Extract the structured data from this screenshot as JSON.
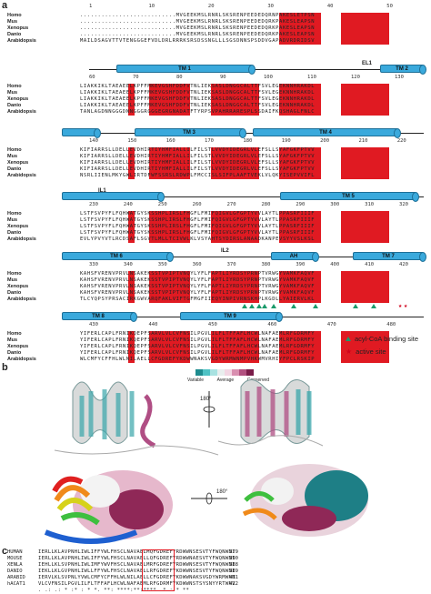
{
  "panels": {
    "a": "a",
    "b": "b",
    "c": "c"
  },
  "species": [
    "Homo",
    "Mus",
    "Xenopus",
    "Danio",
    "Arabidopsis"
  ],
  "block1": {
    "ruler": [
      "1",
      "10",
      "20",
      "30",
      "40",
      "50"
    ],
    "seqs": [
      "...........................MVGEEKMSLRNRLSKSRENPEEDEDQRNPAKESLETPSNGRIDIKQLIAKKIKLTAEAEELKPFFMKEVGSHFDDFVTNLIEKSASLDNGGCALTTFSVLEGEKNNHRAKDLRAPPEQGKIFIARRSLLDELLEVDHIRTIYHMFIALLILFILSTLVVDYIDEGRLVLEFSLLSYAFGKFPTVVWTWWIMFLSTFSVPYFLFQHWATGYSKSSHPLIRSLFHGFLFMIFQIGVLGFGPTYVVLAYTLPPASRFIIIFEQIRFVMKAHSFVRENVPRVLNSAKEKSSTVPIPTVNQYLYFLFAPTLIYRDSYPRNPTVRWGYVAMKFAQVFGCFFYVYYIFERLCAPLFRNIKQEPFSARVLVLCVFNSILPGVLILFLTFFAFLHCWLNAFAEMLRFGDRMFYKDWWNSTSYSNYYRTWNVVVHDWLYYYAYKDFLWFFSKRFKSAAMLAVFAVSAVVHEYALAVCLSFFYPVLFVLFMFFGMAFNFIVNDSRKKPIWNVLMWTSLFLGNGVLLCFYSQEWYARRHCPLKNPTFLDYVRPRSWTCRYVF",
      "...........................MVGEEKMSLRNRLSKSRENPEEDEDQRKPAKESLEAPSNGRIDIKQLIAKKIKLTAEAEELKPFFMKEVGSHFDDFVTNLIEKSASLDNGGCALTTFSVLEGEKNNHRAKDLRAPPEQGKIFIARRSLLDELLEVDHIRTIYHMFIALLILFILSTLVVDYIDEGRLVLEFSLLSYAFGKFPTVVWTWWIMFLSTFSVPYFLFQHWATGYSKSSHPLIRSLFHGFLFMIFQIGVLGFGPTYVVLAYTLPPASRFIIIFEQIRFVMKAHSFVRENVPRVLNSAKEKSSTVPIPTVNQYLYFLFAPTLIYRDSYPRNPTVRWGYVAMKFAQVFGCFFYVYYIFERLCAPLFRNIKQEPFSARVLVLCVFNSILPGVLILFLTFFAFLHCWLNAFAEMLRFGDRMFYKDWWNSTSYSNYYRTWNVVVHDWLYYYAYKDFLWFFSKRFKSAAMLAVFAVSAVVHEYALAVCLSFFYPVLFVLFMFFGMAFNFIVNDSRKKPIWNVLMWTSLFLGNGVLLCFYSQEWYARRHCPLKNPTFLDYVRPRSWTCRYVF",
      "...........................MVGEEKMSLRNRLSKSRENPEEDEDQRKPAKESLEAPSNGRIDIKQLIAKKIKLTAEAEELKPFFMKEVGSHFDDFVTNLIEKSASLDNGGCALTTFSVLEGEKNNHRAKDLRAPPEQGKIFIARRSLLDELLEVDHIRTIYHMFIALLILFILSTLVVDYIDEGRLVLEFSLLSYAFGKFPTVVWTWWIMFLSTFSVPYFLFQHWATGYSKSSHPLIRSLFHGFLFMIFQIGVLGFGPTYVVLAYTLPPASRFIIIFEQIRFVMKAHSFVRENVPRVLNSAKEKSSTVPIPTVNQYLYFLFAPTLIYRDSYPRNPTVRWGYVAMKFAQVFGCFFYVYYIFERLCAPLFRNIKQEPFSARVLVLCVFNSILPGVLILFLTFFAFLHCWLNAFAEMLRFGDRMFYKDWWNSTSYSNYYRTWNVVVHDWLYYYAYKDFLWFFSKRFKSAAMLAVFAVSAVVHEYALAVCLSFFYPVLFVLFMFFGMAFNFIVNDSRKKPIWNVLMWTSLFLGNGVLLCFYSQEWYARRHCPLKNPTFLDYVRPRSWTCRYVF",
      "...........................MVGEEKMSLRNRLSKSRENPEEDEDQRKPAKESLEAPSNGRIDIKQLIAKKIKLTAEAEELKPFFMKEVGSHFDDFVTNLIEKSASLDNGGCALTTFSVLEGEKNNHRAKDLRAPPEQGKIFIARRSLLDELLEVDHIRTIYHMFIALLILFILSTLVVDYIDEGRLVLEFSLLSYAFGKFPTVVWTWWIMFLSTFSVPYFLFQHWATGYSKSSHPLIRSLFHGFLFMIFQIGVLGFGPTYVVLAYTLPPASRFIIIFEQIRFVMKAHSFVRENVPRVLNSAKEKSSTVPIPTVNQYLYFLFAPTLIYRDSYPRNPTVRWGYVAMKFAQVFGCFFYVYYIFERLCAPLFRNIKQEPFSARVLVLCVFNSILPGVLILFLTFFAFLHCWLNAFAEMLRFGDRMFYKDWWNSTSYSNYYRTWNVVVHDWLYYYAYKDFLWFFSKRFKSAAMLAVFAVSAVVHEYALAVCLSFFYPVLFVLFMFFGMAFNFIVNDSRKKPIWNVLMWTSLFLGNGVLLCFYSQEWYARRHCPLKNPTFLDYVRPRSWTCRYVF",
      "MAILDSAGVTTVTENGGGEFVDLDRLRRRKSRSDSSNGLLLSGSDNNSPSDDVGAPADVRDRIDSVVNDDAQGTANLAGDNNGGGDNNGGGRGGGEGRGNADATFTYRPSVPAHRRARESPLSSDAIFKQSHAGLFNLCVVVLIAVNSRLIIENLMKYGWLIRTDFWFSSRSLRDWPLFMCCISLSIFPLAAFTVEKLVLQKYISEPVVIFLHIIITMTEVLYPVYVTLRCDSAFLSGVTLMLLTCIVWLKLVSYAHTSYDIRSLANAADKANPEVSYYVSLKSLAYFMVAPTLCYQPSYPRSACIRKGWVARQFAKLVIFTGFMGFIIEQYINPIVRNSKHPLKGDLLYAIERVLKLSVPNLYVWLCMFYCFFHLWLNILAELLCFGDREFYKDWWNAKSVGDYWRMWNMPVHKWMVRHIYFPCLRSKIPKTLAIIIAFLVSAVFHELCIAVPCRLFKLWAFLGIMFQVPLVFITNYLQERFGSTVGNMIFWFIFCIFGQPMCVLLYYHDLMNRKGSAS"
    ]
  },
  "labels": {
    "tm1": "TM 1",
    "tm2": "TM 2",
    "tm3": "TM 3",
    "tm4": "TM 4",
    "tm5": "TM 5",
    "tm6": "TM 6",
    "tm7": "TM 7",
    "tm8": "TM 8",
    "tm9": "TM 9",
    "el1": "EL1",
    "il1": "IL1",
    "il2": "IL2",
    "ah": "AH"
  },
  "rulers": {
    "r2": [
      "60",
      "70",
      "80",
      "90",
      "100",
      "110",
      "120",
      "130"
    ],
    "r3": [
      "140",
      "150",
      "160",
      "170",
      "180",
      "190",
      "200",
      "210",
      "220"
    ],
    "r4": [
      "230",
      "240",
      "250",
      "260",
      "270",
      "280",
      "290",
      "300",
      "310",
      "320"
    ],
    "r5": [
      "330",
      "340",
      "350",
      "360",
      "370",
      "380",
      "390",
      "400",
      "410",
      "420"
    ],
    "r6": [
      "430",
      "440",
      "450",
      "460",
      "470",
      "480"
    ]
  },
  "legend": {
    "acyl": "acyl-CoA binding site",
    "active": "active site"
  },
  "colors": {
    "identity": "#e01a22",
    "tm": "#3aa9dc",
    "acyl": "#1a9a6a",
    "active": "#d0021b"
  },
  "conservation": {
    "variable": "Variable",
    "average": "Average",
    "conserved": "Conserved",
    "scale": [
      "#1e8c8f",
      "#4fc2c4",
      "#a8e2e1",
      "#e8eeee",
      "#f2d6e3",
      "#d98fb0",
      "#b1507f",
      "#7a1c49"
    ]
  },
  "rotation": {
    "r1": "180°",
    "r2": "180°"
  },
  "panel_c": {
    "rows": [
      {
        "name": "HUMAN",
        "seq": "IERLLKLAVPNHLIWLIFFYWLFHSCLNAVAELMQFGDREFYRDWWNSESVTYFWQNWNI",
        "num": "379"
      },
      {
        "name": "MOUSE",
        "seq": "IERLLKLAVPNHLIWLIFFYWLFHSCLNAVAELLQFGDREFYRDWWNAESVTYFWQNWNI",
        "num": "390"
      },
      {
        "name": "XENLA",
        "seq": "IEHLLKLSVPNHLIWLIMFYWVFHSCLNAVAELMRFGDREFYRDWWNSESVTYFWQNWNI",
        "num": "388"
      },
      {
        "name": "DANIO",
        "seq": "IEKLLKLGVPNHLIWLLFFYWLFHSCLNAVAELLRFGDREFYKDWWNSESVTYFWQNWNI",
        "num": "389"
      },
      {
        "name": "ARABID",
        "seq": "IERVLKLSVPNLYVWLCMFYCFFHLWLNILAELLCFGDREFYKDWWNAKSVGDYWRMWNM",
        "num": "411"
      },
      {
        "name": "hACAT1",
        "seq": "VLCVFNSILPGVLILFLTFFAFLHCWLNAFAEMLRFGDRMFYKDWWNSTSYSNYYRTWNV",
        "num": "422"
      }
    ],
    "consensus": "  .  .:   .:  *  :* : *  *.  **:  ****:**:****..*   :  * **"
  }
}
